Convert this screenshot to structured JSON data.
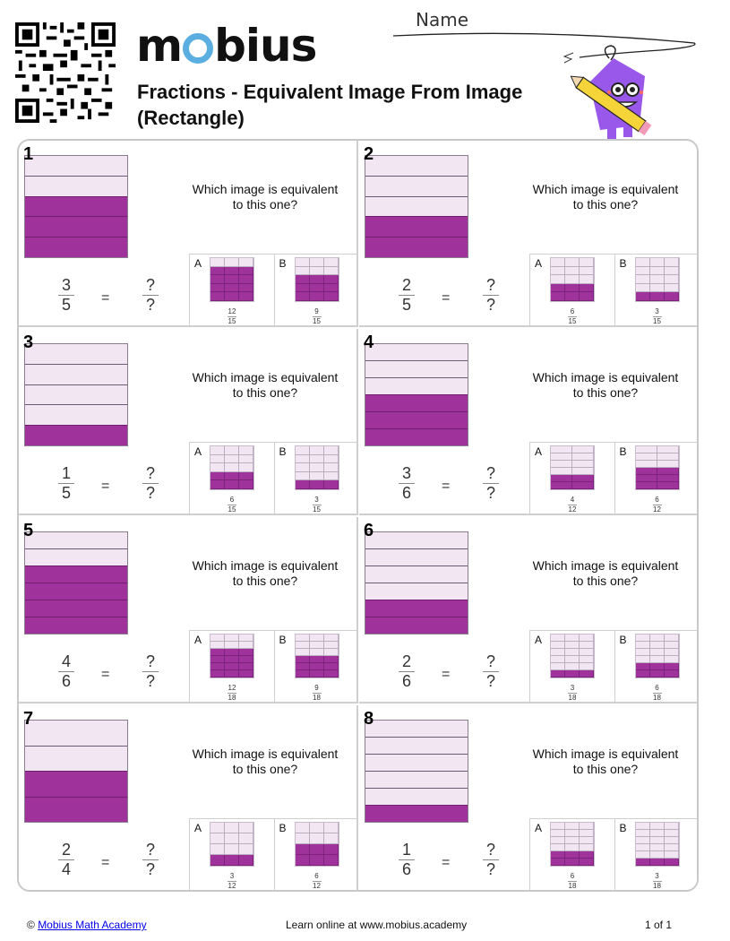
{
  "header": {
    "logo_text": "mobius",
    "title": "Fractions - Equivalent Image From Image (Rectangle)",
    "name_label": "Name"
  },
  "colors": {
    "shaded": "#a0329b",
    "unshaded": "#f2e6f3",
    "logo_accent": "#5aaee0",
    "border": "#c8c8c8"
  },
  "question_text": "Which image is equivalent to this one?",
  "equals": "=",
  "unknown": "?",
  "problems": [
    {
      "number": "1",
      "num": 3,
      "den": 5,
      "options": [
        {
          "letter": "A",
          "rows": 5,
          "cols": 3,
          "shaded_rows": 4,
          "label_num": "12",
          "label_den": "15"
        },
        {
          "letter": "B",
          "rows": 5,
          "cols": 3,
          "shaded_rows": 3,
          "label_num": "9",
          "label_den": "15"
        }
      ]
    },
    {
      "number": "2",
      "num": 2,
      "den": 5,
      "options": [
        {
          "letter": "A",
          "rows": 5,
          "cols": 3,
          "shaded_rows": 2,
          "label_num": "6",
          "label_den": "15"
        },
        {
          "letter": "B",
          "rows": 5,
          "cols": 3,
          "shaded_rows": 1,
          "label_num": "3",
          "label_den": "15"
        }
      ]
    },
    {
      "number": "3",
      "num": 1,
      "den": 5,
      "options": [
        {
          "letter": "A",
          "rows": 5,
          "cols": 3,
          "shaded_rows": 2,
          "label_num": "6",
          "label_den": "15"
        },
        {
          "letter": "B",
          "rows": 5,
          "cols": 3,
          "shaded_rows": 1,
          "label_num": "3",
          "label_den": "15"
        }
      ]
    },
    {
      "number": "4",
      "num": 3,
      "den": 6,
      "options": [
        {
          "letter": "A",
          "rows": 6,
          "cols": 2,
          "shaded_rows": 2,
          "label_num": "4",
          "label_den": "12"
        },
        {
          "letter": "B",
          "rows": 6,
          "cols": 2,
          "shaded_rows": 3,
          "label_num": "6",
          "label_den": "12"
        }
      ]
    },
    {
      "number": "5",
      "num": 4,
      "den": 6,
      "options": [
        {
          "letter": "A",
          "rows": 6,
          "cols": 3,
          "shaded_rows": 4,
          "label_num": "12",
          "label_den": "18"
        },
        {
          "letter": "B",
          "rows": 6,
          "cols": 3,
          "shaded_rows": 3,
          "label_num": "9",
          "label_den": "18"
        }
      ]
    },
    {
      "number": "6",
      "num": 2,
      "den": 6,
      "options": [
        {
          "letter": "A",
          "rows": 6,
          "cols": 3,
          "shaded_rows": 1,
          "label_num": "3",
          "label_den": "18"
        },
        {
          "letter": "B",
          "rows": 6,
          "cols": 3,
          "shaded_rows": 2,
          "label_num": "6",
          "label_den": "18"
        }
      ]
    },
    {
      "number": "7",
      "num": 2,
      "den": 4,
      "options": [
        {
          "letter": "A",
          "rows": 4,
          "cols": 3,
          "shaded_rows": 1,
          "label_num": "3",
          "label_den": "12"
        },
        {
          "letter": "B",
          "rows": 4,
          "cols": 3,
          "shaded_rows": 2,
          "label_num": "6",
          "label_den": "12"
        }
      ]
    },
    {
      "number": "8",
      "num": 1,
      "den": 6,
      "options": [
        {
          "letter": "A",
          "rows": 6,
          "cols": 3,
          "shaded_rows": 2,
          "label_num": "6",
          "label_den": "18"
        },
        {
          "letter": "B",
          "rows": 6,
          "cols": 3,
          "shaded_rows": 1,
          "label_num": "3",
          "label_den": "18"
        }
      ]
    }
  ],
  "footer": {
    "copyright_symbol": "©",
    "link_text": "Mobius Math Academy",
    "center_text": "Learn online at www.mobius.academy",
    "page": "1 of 1"
  }
}
